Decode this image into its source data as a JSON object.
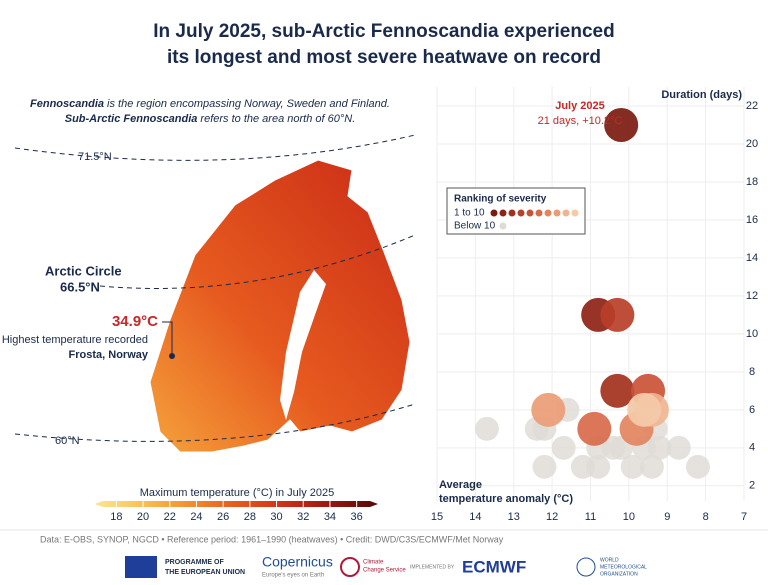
{
  "title": [
    "In July 2025, sub-Arctic Fennoscandia experienced",
    "its longest and most severe heatwave on record"
  ],
  "intro": [
    {
      "em": "Fennoscandia",
      "text": " is the region encompassing Norway, Sweden and Finland."
    },
    {
      "em": "Sub-Arctic Fennoscandia",
      "text": " refers to the area north of 60°N."
    }
  ],
  "map": {
    "lat_labels": [
      "71.5°N",
      "Arctic Circle",
      "66.5°N",
      "60°N"
    ],
    "record": {
      "value": "34.9°C",
      "label": "Highest temperature recorded",
      "place": "Frosta, Norway"
    },
    "colorbar": {
      "label": "Maximum temperature (°C) in July 2025",
      "lim": [
        17,
        37
      ],
      "ticks": [
        18,
        20,
        22,
        24,
        26,
        28,
        30,
        32,
        34,
        36
      ],
      "colors": [
        "#fbe08a",
        "#f9c65a",
        "#f6a33b",
        "#f07e2a",
        "#e65a1f",
        "#d73b18",
        "#bb2314",
        "#8e1410",
        "#5e0a0a"
      ]
    }
  },
  "chart_data": {
    "type": "scatter",
    "x_label": "Average temperature anomaly (°C)",
    "y_label": "Duration (days)",
    "xlim": [
      15,
      7
    ],
    "xticks": [
      15,
      14,
      13,
      12,
      11,
      10,
      9,
      8,
      7
    ],
    "ylim": [
      1.2,
      23
    ],
    "yticks": [
      2,
      4,
      6,
      8,
      10,
      12,
      14,
      16,
      18,
      20,
      22
    ],
    "grid": true,
    "legend_title": "Ranking of severity",
    "annotation": [
      "July 2025",
      "21 days, +10.2°C"
    ],
    "series": [
      {
        "name": "1 to 10",
        "colors": [
          "#7b1a10",
          "#8f2215",
          "#a3301c",
          "#b83f28",
          "#c95236",
          "#d86a4a",
          "#e3845f",
          "#eb9c76",
          "#f0b48f",
          "#f4caa8"
        ],
        "x": [
          10.2,
          10.8,
          10.3,
          10.3,
          9.5,
          10.9,
          9.8,
          12.1,
          9.4,
          9.6
        ],
        "values": [
          21,
          11,
          7,
          11,
          7,
          5,
          5,
          6,
          6,
          6
        ]
      },
      {
        "name": "Below 10",
        "color": "#dedbd6",
        "x": [
          13.7,
          12.2,
          11.6,
          12.2,
          11.2,
          10.8,
          10.4,
          10.2,
          9.9,
          9.6,
          9.4,
          9.3,
          9.2,
          8.7,
          8.2,
          11.7,
          10.8,
          9.7,
          12.4
        ],
        "values": [
          5,
          5,
          6,
          3,
          3,
          3,
          4,
          4,
          3,
          4,
          3,
          5,
          4,
          4,
          3,
          4,
          4,
          6,
          5
        ]
      }
    ]
  },
  "footer": {
    "credit": "Data: E-OBS, SYNOP, NGCD • Reference period: 1961–1990 (heatwaves) • Credit: DWD/C3S/ECMWF/Met Norway",
    "logos": [
      "PROGRAMME OF",
      "THE EUROPEAN UNION",
      "Copernicus",
      "Europe's eyes on Earth",
      "Climate",
      "Change Service",
      "IMPLEMENTED BY",
      "ECMWF",
      "WORLD",
      "METEOROLOGICAL",
      "ORGANIZATION"
    ]
  }
}
